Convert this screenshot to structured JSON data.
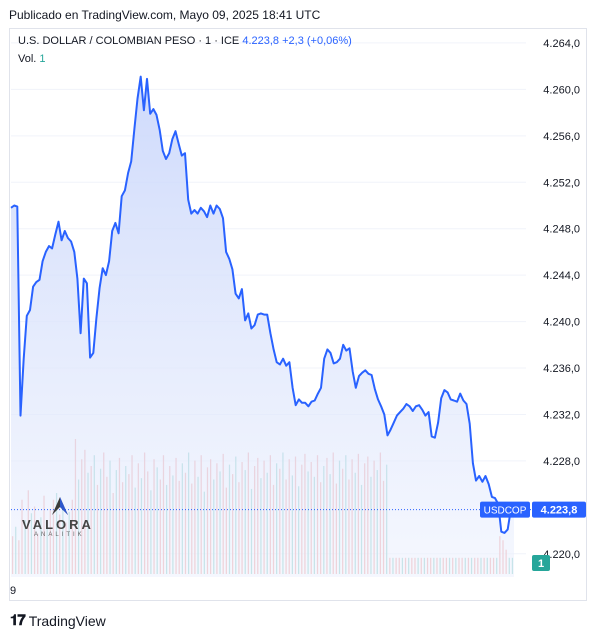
{
  "header": {
    "published": "Publicado en TradingView.com, Mayo 09, 2025 18:41 UTC"
  },
  "legend": {
    "title": "U.S. DOLLAR / COLOMBIAN PESO · 1 · ICE",
    "price": "4.223,8",
    "change": "+2,3 (+0,06%)",
    "volume_label": "Vol.",
    "volume_value": "1"
  },
  "watermark": {
    "name": "VALORA",
    "sub": "ANALITIK"
  },
  "footer": {
    "brand": "TradingView"
  },
  "colors": {
    "line": "#2962ff",
    "area_top": "#c9d6fb",
    "vol_up": "#ef9a9a",
    "vol_down": "#80cbc4",
    "badge": "#2962ff",
    "vol_badge": "#26a69a"
  },
  "chart_data": {
    "type": "area",
    "symbol": "USDCOP",
    "interval": "1",
    "ylim": [
      4218.0,
      4265.2
    ],
    "y_ticks": [
      "4.264,0",
      "4.260,0",
      "4.256,0",
      "4.252,0",
      "4.248,0",
      "4.244,0",
      "4.240,0",
      "4.236,0",
      "4.232,0",
      "4.228,0",
      "4.220,0"
    ],
    "y_tick_values": [
      4264,
      4260,
      4256,
      4252,
      4248,
      4244,
      4240,
      4236,
      4232,
      4228,
      4220
    ],
    "x_tick_labels": [
      "9"
    ],
    "last_price_label": "4.223,8",
    "last_price": 4223.8,
    "symbol_badge": "USDCOP",
    "volume_badge": "1",
    "series": [
      {
        "values": [
          4249.8,
          4250.0,
          4249.9,
          4231.9,
          4236.8,
          4240.5,
          4241.0,
          4243.0,
          4243.4,
          4243.6,
          4245.2,
          4246.0,
          4246.5,
          4246.3,
          4247.5,
          4248.6,
          4247.0,
          4247.8,
          4247.2,
          4246.9,
          4246.0,
          4243.7,
          4239.0,
          4243.7,
          4243.3,
          4236.9,
          4237.3,
          4240.3,
          4242.9,
          4244.6,
          4244.0,
          4245.2,
          4247.8,
          4248.5,
          4247.6,
          4250.8,
          4251.3,
          4252.8,
          4253.8,
          4256.6,
          4259.2,
          4261.1,
          4258.2,
          4260.9,
          4257.9,
          4258.3,
          4257.8,
          4256.5,
          4254.7,
          4254.0,
          4254.5,
          4255.7,
          4256.4,
          4255.3,
          4254.3,
          4254.5,
          4250.5,
          4249.3,
          4249.6,
          4249.3,
          4249.8,
          4249.5,
          4249.0,
          4250.0,
          4249.3,
          4250.0,
          4249.7,
          4248.9,
          4246.0,
          4245.4,
          4244.5,
          4242.4,
          4242.0,
          4242.8,
          4240.1,
          4240.7,
          4239.4,
          4239.7,
          4240.6,
          4240.7,
          4240.6,
          4240.6,
          4239.0,
          4237.6,
          4236.5,
          4236.3,
          4236.8,
          4236.2,
          4236.5,
          4234.3,
          4232.8,
          4233.3,
          4233.0,
          4233.0,
          4232.7,
          4233.1,
          4233.2,
          4233.8,
          4234.3,
          4236.8,
          4237.6,
          4237.3,
          4236.4,
          4236.5,
          4236.8,
          4238.0,
          4237.5,
          4237.7,
          4235.7,
          4234.3,
          4235.3,
          4235.6,
          4235.8,
          4235.5,
          4235.4,
          4234.2,
          4233.3,
          4232.7,
          4232.0,
          4230.2,
          4230.7,
          4231.3,
          4231.9,
          4232.2,
          4232.5,
          4232.9,
          4232.7,
          4232.3,
          4232.7,
          4232.8,
          4232.4,
          4231.9,
          4232.2,
          4230.1,
          4230.0,
          4231.3,
          4233.4,
          4234.1,
          4233.9,
          4233.3,
          4233.2,
          4233.1,
          4233.8,
          4233.2,
          4232.9,
          4231.2,
          4227.8,
          4226.3,
          4226.7,
          4226.2,
          4226.7,
          4226.0,
          4224.9,
          4224.8,
          4224.3,
          4221.9,
          4221.8,
          4222.1,
          4223.8,
          4223.8
        ]
      }
    ],
    "volume": [
      {
        "up": true,
        "v": 0.28
      },
      {
        "up": false,
        "v": 0.35
      },
      {
        "up": true,
        "v": 0.25
      },
      {
        "up": true,
        "v": 0.55
      },
      {
        "up": false,
        "v": 0.4
      },
      {
        "up": true,
        "v": 0.62
      },
      {
        "up": false,
        "v": 0.45
      },
      {
        "up": true,
        "v": 0.5
      },
      {
        "up": true,
        "v": 0.3
      },
      {
        "up": false,
        "v": 0.42
      },
      {
        "up": true,
        "v": 0.58
      },
      {
        "up": false,
        "v": 0.36
      },
      {
        "up": true,
        "v": 0.48
      },
      {
        "up": true,
        "v": 0.55
      },
      {
        "up": false,
        "v": 0.6
      },
      {
        "up": true,
        "v": 0.44
      },
      {
        "up": false,
        "v": 0.52
      },
      {
        "up": true,
        "v": 0.38
      },
      {
        "up": false,
        "v": 0.46
      },
      {
        "up": true,
        "v": 0.55
      },
      {
        "up": true,
        "v": 1.0
      },
      {
        "up": false,
        "v": 0.7
      },
      {
        "up": true,
        "v": 0.85
      },
      {
        "up": true,
        "v": 0.92
      },
      {
        "up": false,
        "v": 0.75
      },
      {
        "up": true,
        "v": 0.8
      },
      {
        "up": false,
        "v": 0.88
      },
      {
        "up": true,
        "v": 0.66
      },
      {
        "up": false,
        "v": 0.78
      },
      {
        "up": true,
        "v": 0.9
      },
      {
        "up": true,
        "v": 0.72
      },
      {
        "up": false,
        "v": 0.84
      },
      {
        "up": true,
        "v": 0.6
      },
      {
        "up": false,
        "v": 0.77
      },
      {
        "up": true,
        "v": 0.86
      },
      {
        "up": true,
        "v": 0.68
      },
      {
        "up": false,
        "v": 0.8
      },
      {
        "up": true,
        "v": 0.74
      },
      {
        "up": true,
        "v": 0.88
      },
      {
        "up": false,
        "v": 0.64
      },
      {
        "up": true,
        "v": 0.82
      },
      {
        "up": false,
        "v": 0.71
      },
      {
        "up": true,
        "v": 0.9
      },
      {
        "up": true,
        "v": 0.76
      },
      {
        "up": false,
        "v": 0.62
      },
      {
        "up": true,
        "v": 0.85
      },
      {
        "up": false,
        "v": 0.79
      },
      {
        "up": true,
        "v": 0.7
      },
      {
        "up": true,
        "v": 0.88
      },
      {
        "up": false,
        "v": 0.66
      },
      {
        "up": true,
        "v": 0.8
      },
      {
        "up": false,
        "v": 0.73
      },
      {
        "up": true,
        "v": 0.86
      },
      {
        "up": true,
        "v": 0.69
      },
      {
        "up": false,
        "v": 0.82
      },
      {
        "up": true,
        "v": 0.75
      },
      {
        "up": false,
        "v": 0.9
      },
      {
        "up": true,
        "v": 0.67
      },
      {
        "up": true,
        "v": 0.84
      },
      {
        "up": false,
        "v": 0.72
      },
      {
        "up": true,
        "v": 0.88
      },
      {
        "up": false,
        "v": 0.61
      },
      {
        "up": true,
        "v": 0.79
      },
      {
        "up": true,
        "v": 0.85
      },
      {
        "up": false,
        "v": 0.7
      },
      {
        "up": true,
        "v": 0.82
      },
      {
        "up": false,
        "v": 0.76
      },
      {
        "up": true,
        "v": 0.89
      },
      {
        "up": true,
        "v": 0.64
      },
      {
        "up": false,
        "v": 0.81
      },
      {
        "up": true,
        "v": 0.74
      },
      {
        "up": false,
        "v": 0.87
      },
      {
        "up": true,
        "v": 0.68
      },
      {
        "up": true,
        "v": 0.83
      },
      {
        "up": false,
        "v": 0.77
      },
      {
        "up": true,
        "v": 0.9
      },
      {
        "up": false,
        "v": 0.63
      },
      {
        "up": true,
        "v": 0.8
      },
      {
        "up": true,
        "v": 0.86
      },
      {
        "up": false,
        "v": 0.71
      },
      {
        "up": true,
        "v": 0.84
      },
      {
        "up": false,
        "v": 0.75
      },
      {
        "up": true,
        "v": 0.88
      },
      {
        "up": true,
        "v": 0.66
      },
      {
        "up": false,
        "v": 0.82
      },
      {
        "up": true,
        "v": 0.78
      },
      {
        "up": false,
        "v": 0.9
      },
      {
        "up": true,
        "v": 0.7
      },
      {
        "up": true,
        "v": 0.85
      },
      {
        "up": false,
        "v": 0.73
      },
      {
        "up": true,
        "v": 0.87
      },
      {
        "up": false,
        "v": 0.65
      },
      {
        "up": true,
        "v": 0.81
      },
      {
        "up": true,
        "v": 0.89
      },
      {
        "up": false,
        "v": 0.76
      },
      {
        "up": true,
        "v": 0.83
      },
      {
        "up": false,
        "v": 0.72
      },
      {
        "up": true,
        "v": 0.88
      },
      {
        "up": true,
        "v": 0.68
      },
      {
        "up": false,
        "v": 0.8
      },
      {
        "up": true,
        "v": 0.86
      },
      {
        "up": false,
        "v": 0.74
      },
      {
        "up": true,
        "v": 0.9
      },
      {
        "up": true,
        "v": 0.67
      },
      {
        "up": false,
        "v": 0.84
      },
      {
        "up": true,
        "v": 0.78
      },
      {
        "up": false,
        "v": 0.88
      },
      {
        "up": true,
        "v": 0.7
      },
      {
        "up": true,
        "v": 0.85
      },
      {
        "up": false,
        "v": 0.75
      },
      {
        "up": true,
        "v": 0.89
      },
      {
        "up": false,
        "v": 0.66
      },
      {
        "up": true,
        "v": 0.82
      },
      {
        "up": true,
        "v": 0.87
      },
      {
        "up": false,
        "v": 0.72
      },
      {
        "up": true,
        "v": 0.84
      },
      {
        "up": false,
        "v": 0.77
      },
      {
        "up": true,
        "v": 0.9
      },
      {
        "up": true,
        "v": 0.69
      },
      {
        "up": false,
        "v": 0.81
      },
      {
        "up": true,
        "v": 0.12
      },
      {
        "up": false,
        "v": 0.12
      },
      {
        "up": true,
        "v": 0.12
      },
      {
        "up": true,
        "v": 0.12
      },
      {
        "up": false,
        "v": 0.12
      },
      {
        "up": true,
        "v": 0.12
      },
      {
        "up": false,
        "v": 0.12
      },
      {
        "up": true,
        "v": 0.12
      },
      {
        "up": true,
        "v": 0.12
      },
      {
        "up": false,
        "v": 0.12
      },
      {
        "up": true,
        "v": 0.12
      },
      {
        "up": false,
        "v": 0.12
      },
      {
        "up": true,
        "v": 0.12
      },
      {
        "up": true,
        "v": 0.12
      },
      {
        "up": false,
        "v": 0.12
      },
      {
        "up": true,
        "v": 0.12
      },
      {
        "up": false,
        "v": 0.12
      },
      {
        "up": true,
        "v": 0.12
      },
      {
        "up": true,
        "v": 0.12
      },
      {
        "up": false,
        "v": 0.12
      },
      {
        "up": true,
        "v": 0.12
      },
      {
        "up": false,
        "v": 0.12
      },
      {
        "up": true,
        "v": 0.12
      },
      {
        "up": true,
        "v": 0.12
      },
      {
        "up": false,
        "v": 0.12
      },
      {
        "up": true,
        "v": 0.12
      },
      {
        "up": false,
        "v": 0.12
      },
      {
        "up": true,
        "v": 0.12
      },
      {
        "up": true,
        "v": 0.12
      },
      {
        "up": false,
        "v": 0.12
      },
      {
        "up": true,
        "v": 0.12
      },
      {
        "up": false,
        "v": 0.12
      },
      {
        "up": true,
        "v": 0.12
      },
      {
        "up": true,
        "v": 0.12
      },
      {
        "up": false,
        "v": 0.12
      },
      {
        "up": true,
        "v": 0.28
      },
      {
        "up": true,
        "v": 0.25
      },
      {
        "up": true,
        "v": 0.18
      },
      {
        "up": false,
        "v": 0.12
      },
      {
        "up": false,
        "v": 0.12
      }
    ]
  }
}
